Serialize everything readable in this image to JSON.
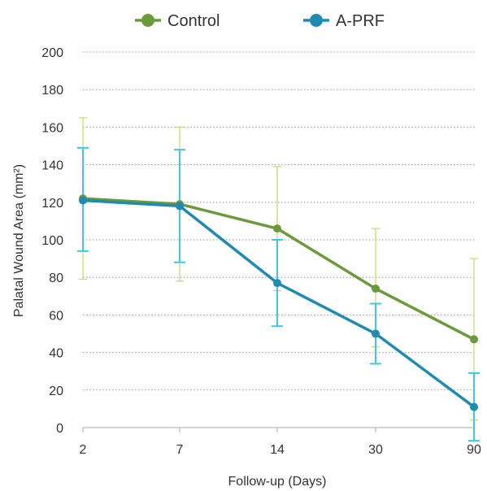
{
  "chart_data": {
    "type": "line",
    "categories": [
      "2",
      "7",
      "14",
      "30",
      "90"
    ],
    "xlabel": "Follow-up (Days)",
    "ylabel": "Palatal Wound Area (mm²)",
    "ylim": [
      0,
      200
    ],
    "yticks": [
      0,
      20,
      40,
      60,
      80,
      100,
      120,
      140,
      160,
      180,
      200
    ],
    "grid": "horizontal-dotted",
    "legend_position": "top-center",
    "series": [
      {
        "name": "Control",
        "color": "#6b9a3a",
        "errcolor": "#c8d96b",
        "values": [
          122,
          119,
          106,
          74,
          47
        ],
        "err_low": [
          79,
          78,
          73,
          43,
          4
        ],
        "err_high": [
          165,
          160,
          139,
          106,
          90
        ]
      },
      {
        "name": "A-PRF",
        "color": "#1f8bb3",
        "errcolor": "#3ec7e6",
        "values": [
          121,
          118,
          77,
          50,
          11
        ],
        "err_low": [
          94,
          88,
          54,
          34,
          -7
        ],
        "err_high": [
          149,
          148,
          100,
          66,
          29
        ]
      }
    ]
  }
}
